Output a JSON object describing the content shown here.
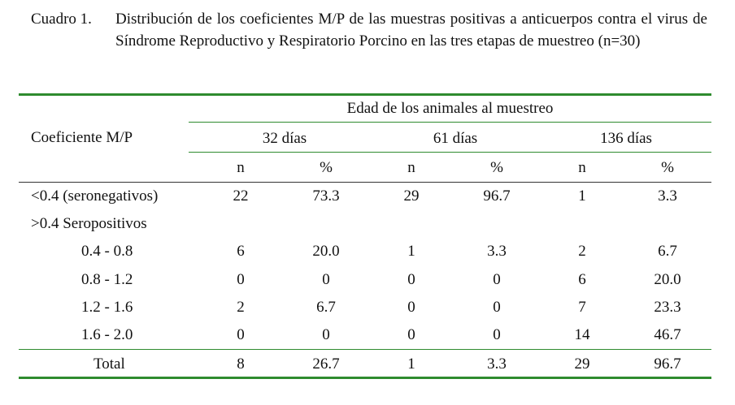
{
  "caption": {
    "label": "Cuadro 1.",
    "text": "Distribución de los coeficientes M/P de las muestras positivas a anticuerpos contra el virus de Síndrome Reproductivo y Respiratorio Porcino en las tres etapas de muestreo (n=30)"
  },
  "table": {
    "row_header": "Coeficiente M/P",
    "group_header": "Edad de los animales al muestreo",
    "ages": [
      "32 días",
      "61 días",
      "136 días"
    ],
    "subheaders": [
      "n",
      "%",
      "n",
      "%",
      "n",
      "%"
    ],
    "rows": [
      {
        "label": "<0.4 (seronegativos)",
        "values": [
          "22",
          "73.3",
          "29",
          "96.7",
          "1",
          "3.3"
        ]
      },
      {
        "label": ">0.4 Seropositivos",
        "values": [
          "",
          "",
          "",
          "",
          "",
          ""
        ]
      },
      {
        "label": "0.4 - 0.8",
        "values": [
          "6",
          "20.0",
          "1",
          "3.3",
          "2",
          "6.7"
        ]
      },
      {
        "label": "0.8 - 1.2",
        "values": [
          "0",
          "0",
          "0",
          "0",
          "6",
          "20.0"
        ]
      },
      {
        "label": "1.2 - 1.6",
        "values": [
          "2",
          "6.7",
          "0",
          "0",
          "7",
          "23.3"
        ]
      },
      {
        "label": "1.6 - 2.0",
        "values": [
          "0",
          "0",
          "0",
          "0",
          "14",
          "46.7"
        ]
      }
    ],
    "total": {
      "label": "Total",
      "values": [
        "8",
        "26.7",
        "1",
        "3.3",
        "29",
        "96.7"
      ]
    }
  }
}
